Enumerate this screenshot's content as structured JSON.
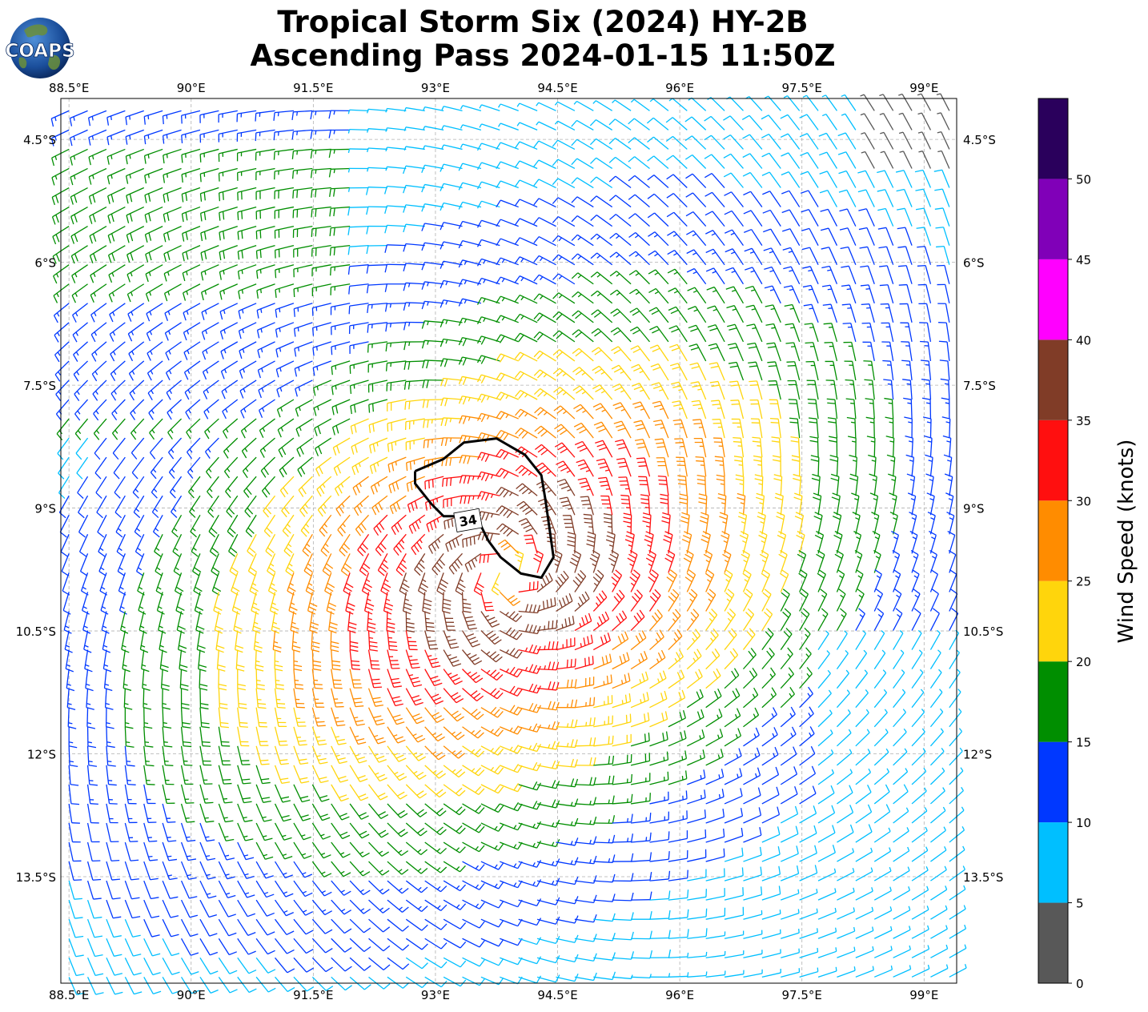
{
  "figure": {
    "title_line1": "Tropical Storm Six (2024) HY-2B",
    "title_line2": "Ascending Pass 2024-01-15 11:50Z",
    "logo_text": "COAPS"
  },
  "map": {
    "lon_range": [
      88.4,
      99.4
    ],
    "lat_range": [
      -14.8,
      -4.0
    ],
    "lon_ticks": [
      {
        "value": 88.5,
        "label": "88.5°E"
      },
      {
        "value": 90.0,
        "label": "90°E"
      },
      {
        "value": 91.5,
        "label": "91.5°E"
      },
      {
        "value": 93.0,
        "label": "93°E"
      },
      {
        "value": 94.5,
        "label": "94.5°E"
      },
      {
        "value": 96.0,
        "label": "96°E"
      },
      {
        "value": 97.5,
        "label": "97.5°E"
      },
      {
        "value": 99.0,
        "label": "99°E"
      }
    ],
    "lat_ticks": [
      {
        "value": -4.5,
        "label": "4.5°S"
      },
      {
        "value": -6.0,
        "label": "6°S"
      },
      {
        "value": -7.5,
        "label": "7.5°S"
      },
      {
        "value": -9.0,
        "label": "9°S"
      },
      {
        "value": -10.5,
        "label": "10.5°S"
      },
      {
        "value": -12.0,
        "label": "12°S"
      },
      {
        "value": -13.5,
        "label": "13.5°S"
      }
    ],
    "gridlines": true,
    "storm_center": {
      "lon": 93.9,
      "lat": -9.8
    },
    "contour": {
      "label": "34",
      "level_knots": 34,
      "label_position": {
        "lon": 93.4,
        "lat": -9.15
      },
      "path": [
        {
          "lon": 92.75,
          "lat": -8.55
        },
        {
          "lon": 93.1,
          "lat": -8.4
        },
        {
          "lon": 93.35,
          "lat": -8.2
        },
        {
          "lon": 93.75,
          "lat": -8.15
        },
        {
          "lon": 94.1,
          "lat": -8.35
        },
        {
          "lon": 94.3,
          "lat": -8.6
        },
        {
          "lon": 94.35,
          "lat": -8.9
        },
        {
          "lon": 94.4,
          "lat": -9.25
        },
        {
          "lon": 94.45,
          "lat": -9.6
        },
        {
          "lon": 94.3,
          "lat": -9.85
        },
        {
          "lon": 94.05,
          "lat": -9.8
        },
        {
          "lon": 93.8,
          "lat": -9.6
        },
        {
          "lon": 93.65,
          "lat": -9.4
        },
        {
          "lon": 93.55,
          "lat": -9.2
        },
        {
          "lon": 93.3,
          "lat": -9.1
        },
        {
          "lon": 93.1,
          "lat": -9.1
        },
        {
          "lon": 92.95,
          "lat": -8.95
        },
        {
          "lon": 92.75,
          "lat": -8.7
        },
        {
          "lon": 92.75,
          "lat": -8.55
        }
      ]
    }
  },
  "colorbar": {
    "title": "Wind Speed (knots)",
    "range": [
      0,
      55
    ],
    "bins": [
      {
        "min": 0,
        "max": 5,
        "color": "#585858"
      },
      {
        "min": 5,
        "max": 10,
        "color": "#00bfff"
      },
      {
        "min": 10,
        "max": 15,
        "color": "#0038ff"
      },
      {
        "min": 15,
        "max": 20,
        "color": "#008e00"
      },
      {
        "min": 20,
        "max": 25,
        "color": "#ffd50c"
      },
      {
        "min": 25,
        "max": 30,
        "color": "#ff8c00"
      },
      {
        "min": 30,
        "max": 35,
        "color": "#ff0f0f"
      },
      {
        "min": 35,
        "max": 40,
        "color": "#803c27"
      },
      {
        "min": 40,
        "max": 45,
        "color": "#ff00ff"
      },
      {
        "min": 45,
        "max": 50,
        "color": "#8000b8"
      },
      {
        "min": 50,
        "max": 55,
        "color": "#2a005c"
      }
    ],
    "ticks": [
      {
        "value": 0,
        "label": "0"
      },
      {
        "value": 5,
        "label": "5"
      },
      {
        "value": 10,
        "label": "10"
      },
      {
        "value": 15,
        "label": "15"
      },
      {
        "value": 20,
        "label": "20"
      },
      {
        "value": 25,
        "label": "25"
      },
      {
        "value": 30,
        "label": "30"
      },
      {
        "value": 35,
        "label": "35"
      },
      {
        "value": 40,
        "label": "40"
      },
      {
        "value": 45,
        "label": "45"
      },
      {
        "value": 50,
        "label": "50"
      }
    ]
  }
}
